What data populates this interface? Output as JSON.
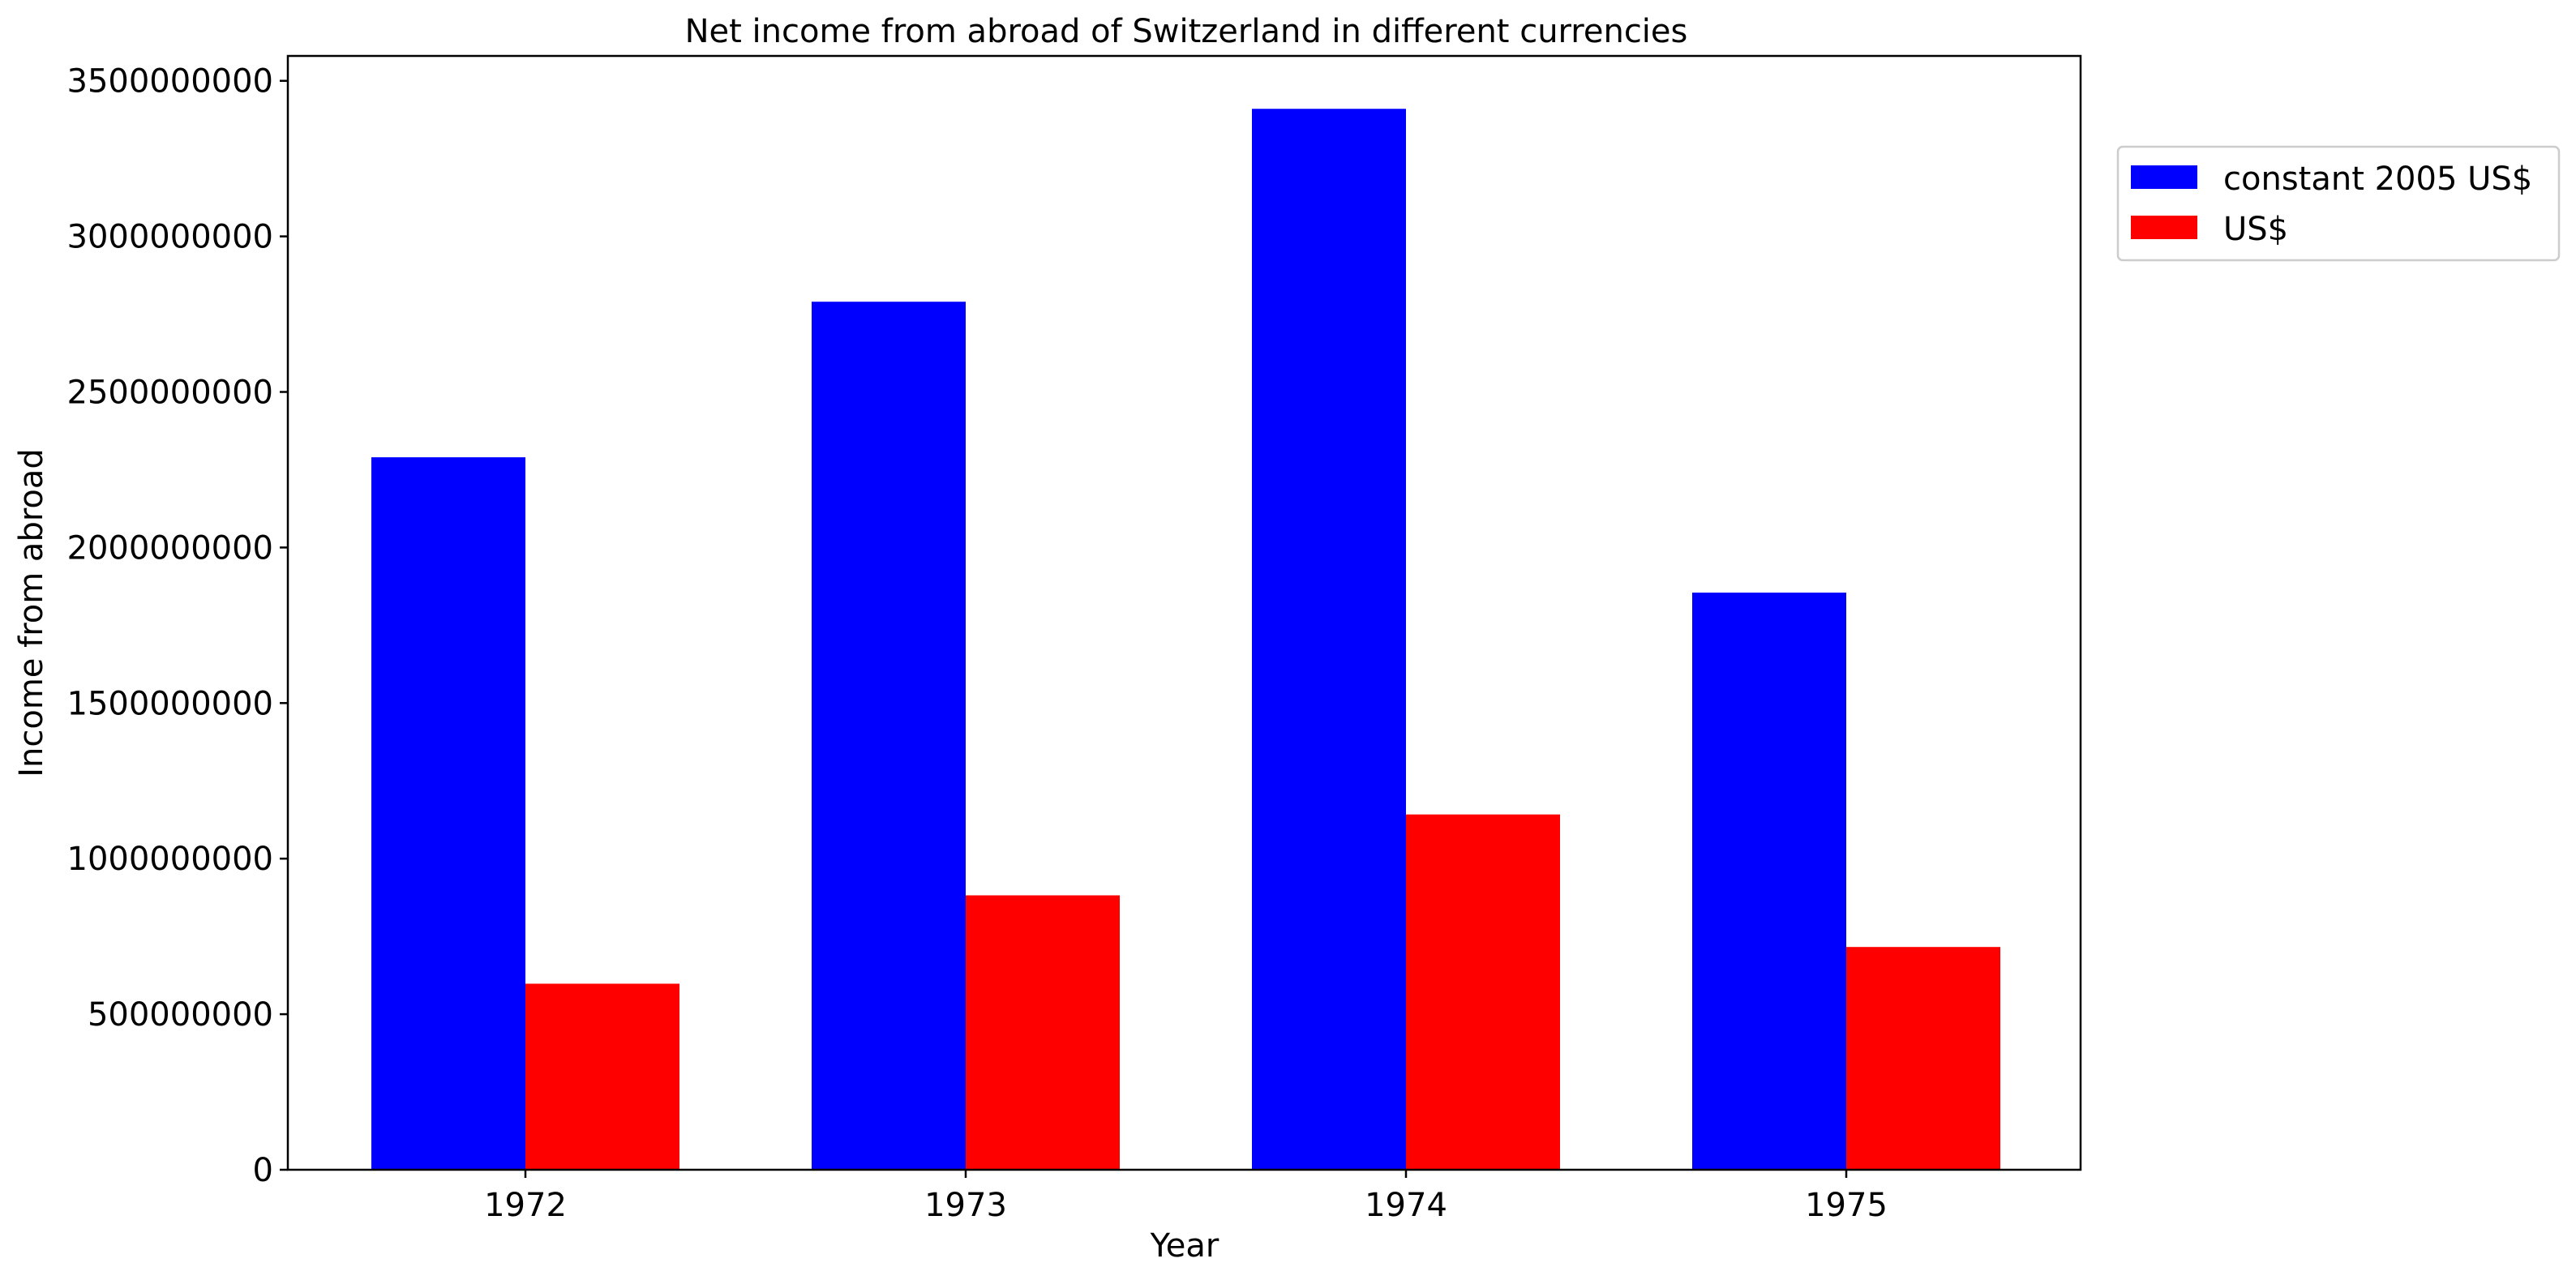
{
  "chart_data": {
    "type": "bar",
    "title": "Net income from abroad of Switzerland in different currencies",
    "xlabel": "Year",
    "ylabel": "Income from abroad",
    "categories": [
      "1972",
      "1973",
      "1974",
      "1975"
    ],
    "series": [
      {
        "name": "constant 2005 US$",
        "color": "#0000ff",
        "values": [
          2290000000,
          2790000000,
          3410000000,
          1855000000
        ]
      },
      {
        "name": "US$",
        "color": "#ff0000",
        "values": [
          598000000,
          882000000,
          1142000000,
          716000000
        ]
      }
    ],
    "ylim": [
      0,
      3580000000
    ],
    "yticks": [
      "0",
      "500000000",
      "1000000000",
      "1500000000",
      "2000000000",
      "2500000000",
      "3000000000",
      "3500000000"
    ],
    "grid": false,
    "legend_position": "outside-right-top"
  }
}
